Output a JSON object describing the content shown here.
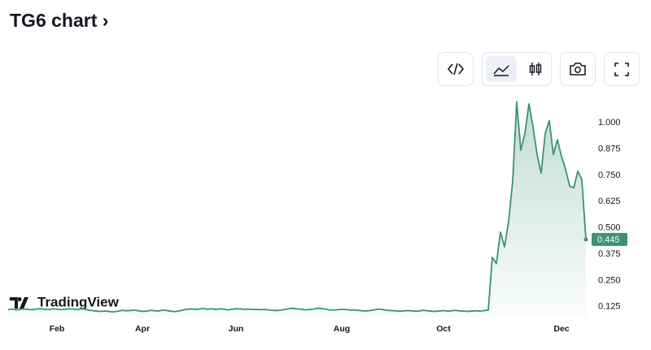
{
  "title": "TG6 chart",
  "brand": "TradingView",
  "chart_data": {
    "type": "area",
    "color": "#3d9178",
    "categories": [
      null,
      null,
      null,
      null,
      null,
      null,
      null,
      null,
      null,
      null,
      null,
      null,
      "Feb",
      null,
      null,
      null,
      null,
      null,
      null,
      null,
      null,
      null,
      null,
      null,
      null,
      null,
      null,
      null,
      null,
      null,
      null,
      null,
      null,
      "Apr",
      null,
      null,
      null,
      null,
      null,
      null,
      null,
      null,
      null,
      null,
      null,
      null,
      null,
      null,
      null,
      null,
      null,
      null,
      null,
      null,
      null,
      null,
      "Jun",
      null,
      null,
      null,
      null,
      null,
      null,
      null,
      null,
      null,
      null,
      null,
      null,
      null,
      null,
      null,
      null,
      null,
      null,
      null,
      null,
      null,
      null,
      null,
      null,
      null,
      "Aug",
      null,
      null,
      null,
      null,
      null,
      null,
      null,
      null,
      null,
      null,
      null,
      null,
      null,
      null,
      null,
      null,
      null,
      null,
      null,
      null,
      null,
      null,
      null,
      null,
      "Oct",
      null,
      null,
      null,
      null,
      null,
      null,
      null,
      null,
      null,
      null,
      null,
      null,
      null,
      null,
      null,
      null,
      null,
      null,
      null,
      null,
      null,
      null,
      null,
      null,
      null,
      null,
      null,
      null,
      "Dec",
      null,
      null,
      null,
      null,
      null,
      null
    ],
    "values": [
      0.112,
      0.114,
      0.11,
      0.113,
      0.115,
      0.112,
      0.111,
      0.114,
      0.116,
      0.113,
      0.112,
      0.115,
      0.114,
      0.111,
      0.113,
      0.116,
      0.114,
      0.112,
      0.115,
      0.113,
      0.108,
      0.106,
      0.104,
      0.103,
      0.105,
      0.102,
      0.101,
      0.104,
      0.108,
      0.106,
      0.107,
      0.109,
      0.106,
      0.103,
      0.104,
      0.108,
      0.106,
      0.105,
      0.109,
      0.107,
      0.104,
      0.102,
      0.105,
      0.11,
      0.113,
      0.115,
      0.112,
      0.114,
      0.117,
      0.113,
      0.116,
      0.112,
      0.115,
      0.114,
      0.11,
      0.113,
      0.116,
      0.115,
      0.113,
      0.114,
      0.112,
      0.113,
      0.111,
      0.112,
      0.11,
      0.108,
      0.107,
      0.109,
      0.112,
      0.116,
      0.118,
      0.115,
      0.113,
      0.11,
      0.112,
      0.114,
      0.118,
      0.117,
      0.114,
      0.11,
      0.109,
      0.111,
      0.113,
      0.112,
      0.109,
      0.11,
      0.108,
      0.106,
      0.105,
      0.107,
      0.11,
      0.114,
      0.112,
      0.108,
      0.107,
      0.106,
      0.104,
      0.105,
      0.107,
      0.106,
      0.104,
      0.105,
      0.108,
      0.106,
      0.104,
      0.103,
      0.105,
      0.107,
      0.104,
      0.106,
      0.108,
      0.105,
      0.104,
      0.103,
      0.105,
      0.106,
      0.104,
      0.107,
      0.109,
      0.36,
      0.33,
      0.48,
      0.41,
      0.53,
      0.72,
      1.1,
      0.87,
      0.95,
      1.09,
      0.98,
      0.85,
      0.76,
      0.95,
      1.01,
      0.85,
      0.92,
      0.84,
      0.78,
      0.7,
      0.69,
      0.77,
      0.73,
      0.445
    ],
    "ylim": [
      0.07,
      1.14
    ],
    "yticks": [
      0.125,
      {
        "value": 0.25,
        "label": "0.250"
      },
      0.375,
      {
        "value": 0.5,
        "label": "0.500"
      },
      0.625,
      {
        "value": 0.75,
        "label": "0.750"
      },
      0.875,
      {
        "value": 1,
        "label": "1.000"
      }
    ]
  }
}
